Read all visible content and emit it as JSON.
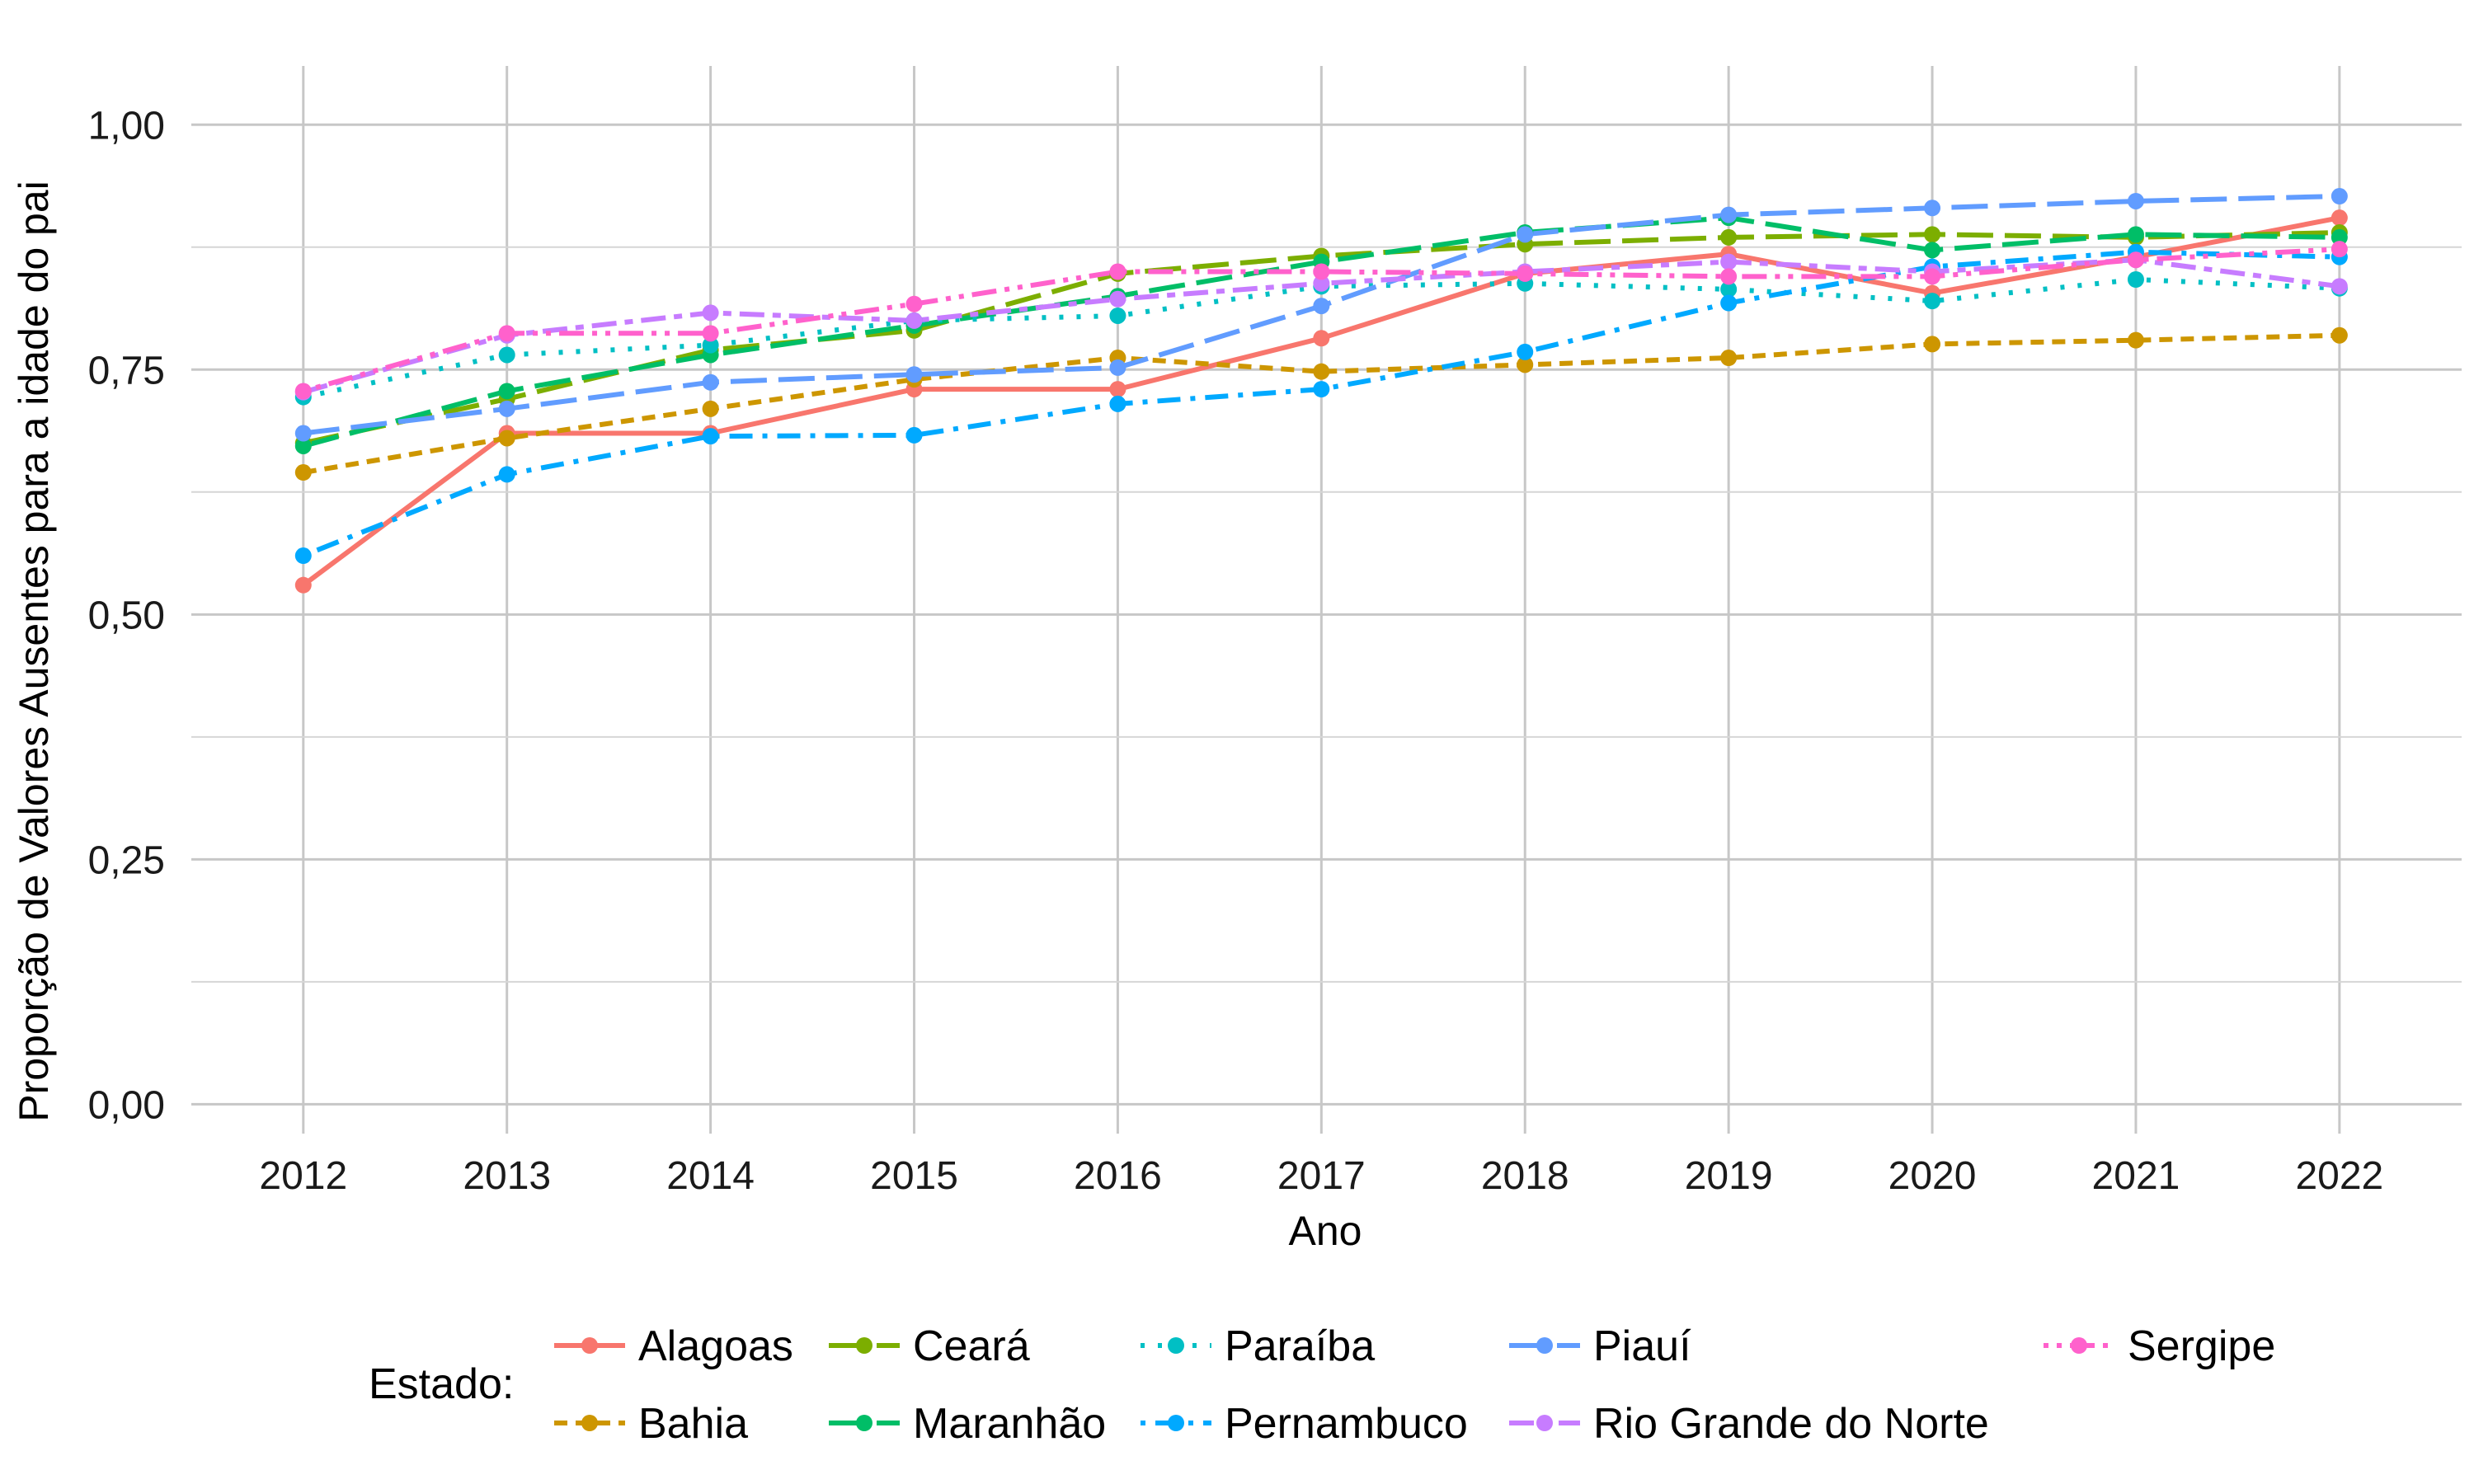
{
  "chart_data": {
    "type": "line",
    "xlabel": "Ano",
    "ylabel": "Proporção de Valores Ausentes para a idade do pai",
    "x": [
      2012,
      2013,
      2014,
      2015,
      2016,
      2017,
      2018,
      2019,
      2020,
      2021,
      2022
    ],
    "x_ticks": [
      "2012",
      "2013",
      "2014",
      "2015",
      "2016",
      "2017",
      "2018",
      "2019",
      "2020",
      "2021",
      "2022"
    ],
    "ylim": [
      -0.03,
      1.06
    ],
    "y_ticks": [
      {
        "value": 0.0,
        "label": "0,00"
      },
      {
        "value": 0.25,
        "label": "0,25"
      },
      {
        "value": 0.5,
        "label": "0,50"
      },
      {
        "value": 0.75,
        "label": "0,75"
      },
      {
        "value": 1.0,
        "label": "1,00"
      }
    ],
    "grid": true,
    "legend_position": "bottom",
    "legend_title": "Estado:",
    "series": [
      {
        "name": "Alagoas",
        "color": "#F8766D",
        "dash": "solid",
        "values": [
          0.53,
          0.685,
          0.685,
          0.73,
          0.73,
          0.782,
          0.848,
          0.868,
          0.828,
          0.865,
          0.905
        ]
      },
      {
        "name": "Bahia",
        "color": "#CD9600",
        "dash": "dashed",
        "values": [
          0.645,
          0.68,
          0.71,
          0.74,
          0.762,
          0.748,
          0.755,
          0.762,
          0.776,
          0.78,
          0.785
        ]
      },
      {
        "name": "Ceará",
        "color": "#7CAE00",
        "dash": "longdash",
        "values": [
          0.675,
          0.72,
          0.77,
          0.79,
          0.848,
          0.866,
          0.878,
          0.885,
          0.888,
          0.885,
          0.89
        ]
      },
      {
        "name": "Maranhão",
        "color": "#00BE67",
        "dash": "longdash",
        "values": [
          0.672,
          0.728,
          0.765,
          0.795,
          0.825,
          0.86,
          0.89,
          0.905,
          0.872,
          0.888,
          0.885
        ]
      },
      {
        "name": "Paraíba",
        "color": "#00BFC4",
        "dash": "dotted",
        "values": [
          0.722,
          0.765,
          0.775,
          0.8,
          0.805,
          0.835,
          0.838,
          0.832,
          0.82,
          0.842,
          0.833
        ]
      },
      {
        "name": "Pernambuco",
        "color": "#00A9FF",
        "dash": "dotdash",
        "values": [
          0.56,
          0.643,
          0.682,
          0.683,
          0.715,
          0.73,
          0.768,
          0.818,
          0.855,
          0.87,
          0.865
        ]
      },
      {
        "name": "Piauí",
        "color": "#619CFF",
        "dash": "longdash",
        "values": [
          0.685,
          0.71,
          0.737,
          0.745,
          0.752,
          0.815,
          0.888,
          0.908,
          0.915,
          0.922,
          0.927
        ]
      },
      {
        "name": "Rio Grande do Norte",
        "color": "#C77CFF",
        "dash": "twodash",
        "values": [
          0.727,
          0.785,
          0.808,
          0.8,
          0.822,
          0.838,
          0.85,
          0.86,
          0.85,
          0.862,
          0.835
        ]
      },
      {
        "name": "Sergipe",
        "color": "#FF61CC",
        "dash": "dotdotdash",
        "values": [
          0.728,
          0.787,
          0.787,
          0.817,
          0.85,
          0.85,
          0.848,
          0.845,
          0.845,
          0.862,
          0.873
        ]
      }
    ]
  }
}
